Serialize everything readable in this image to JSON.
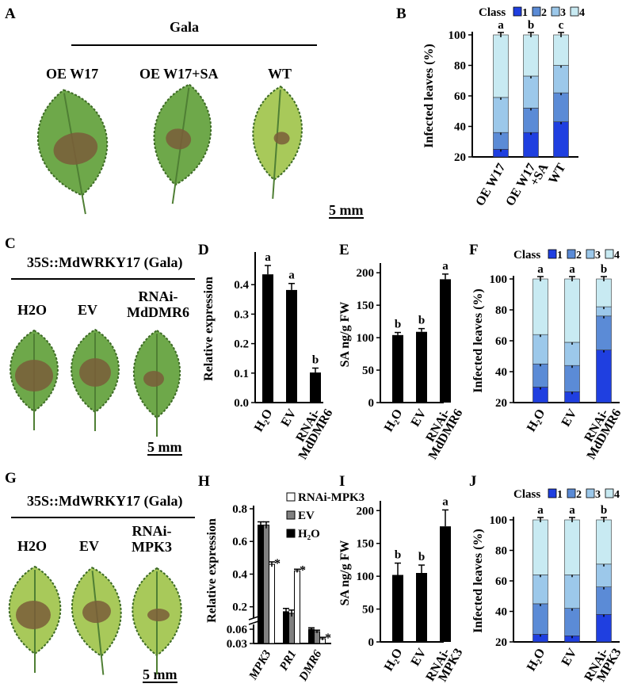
{
  "panel_letters": {
    "A": "A",
    "B": "B",
    "C": "C",
    "D": "D",
    "E": "E",
    "F": "F",
    "G": "G",
    "H": "H",
    "I": "I",
    "J": "J"
  },
  "panel_a": {
    "title": "Gala",
    "labels": [
      "OE W17",
      "OE W17+SA",
      "WT"
    ],
    "scale": "5 mm"
  },
  "panel_c": {
    "title": "35S::MdWRKY17 (Gala)",
    "labels": [
      "H2O",
      "EV",
      "RNAi-\nMdDMR6"
    ],
    "scale": "5 mm"
  },
  "panel_g": {
    "title": "35S::MdWRKY17 (Gala)",
    "labels": [
      "H2O",
      "EV",
      "RNAi-\nMPK3"
    ],
    "scale": "5 mm"
  },
  "colors": {
    "class1": "#1f3fe0",
    "class2": "#5b8bd6",
    "class3": "#9cc8ea",
    "class4": "#c8eaf2",
    "bar_black": "#000000",
    "bar_gray": "#808080",
    "leaf": "#6ea84a",
    "lesion": "#7a5d3a"
  },
  "chart_data": [
    {
      "id": "B",
      "type": "bar",
      "stacked": true,
      "ylabel": "Infected leaves (%)",
      "ylim": [
        20,
        100
      ],
      "yticks": [
        20,
        40,
        60,
        80,
        100
      ],
      "categories": [
        "OE W17",
        "OE W17\n+SA",
        "WT"
      ],
      "legend_title": "Class",
      "legend": [
        "1",
        "2",
        "3",
        "4"
      ],
      "cumulative": [
        [
          25,
          36,
          59,
          100
        ],
        [
          36,
          52,
          73,
          100
        ],
        [
          43,
          62,
          80,
          100
        ]
      ],
      "letters": [
        "a",
        "b",
        "c"
      ]
    },
    {
      "id": "D",
      "type": "bar",
      "ylabel": "Relative expression",
      "ylim": [
        0,
        0.5
      ],
      "yticks": [
        0.0,
        0.1,
        0.2,
        0.3,
        0.4
      ],
      "categories": [
        "H2O",
        "EV",
        "RNAi-\nMdDMR6"
      ],
      "values": [
        0.435,
        0.382,
        0.102
      ],
      "errors": [
        0.03,
        0.022,
        0.015
      ],
      "letters": [
        "a",
        "a",
        "b"
      ]
    },
    {
      "id": "E",
      "type": "bar",
      "ylabel": "SA ng/g FW",
      "ylim": [
        0,
        210
      ],
      "yticks": [
        0,
        50,
        100,
        150,
        200
      ],
      "categories": [
        "H2O",
        "EV",
        "RNAi-\nMdDMR6"
      ],
      "values": [
        104,
        109,
        190
      ],
      "errors": [
        4,
        5,
        8
      ],
      "letters": [
        "b",
        "b",
        "a"
      ]
    },
    {
      "id": "F",
      "type": "bar",
      "stacked": true,
      "ylabel": "Infected leaves (%)",
      "ylim": [
        20,
        100
      ],
      "yticks": [
        20,
        40,
        60,
        80,
        100
      ],
      "categories": [
        "H2O",
        "EV",
        "RNAi-\nMdDMR6"
      ],
      "legend_title": "Class",
      "legend": [
        "1",
        "2",
        "3",
        "4"
      ],
      "cumulative": [
        [
          30,
          45,
          64,
          100
        ],
        [
          27,
          44,
          59,
          100
        ],
        [
          54,
          76,
          82,
          100
        ]
      ],
      "letters": [
        "a",
        "a",
        "b"
      ]
    },
    {
      "id": "H",
      "type": "bar",
      "grouped": true,
      "ylabel": "Relative expression",
      "categories": [
        "MPK3",
        "PR1",
        "DMR6"
      ],
      "series": [
        {
          "name": "H2O",
          "values": [
            0.7,
            0.17,
            0.06
          ]
        },
        {
          "name": "EV",
          "values": [
            0.7,
            0.16,
            0.055
          ]
        },
        {
          "name": "RNAi-MPK3",
          "values": [
            0.46,
            0.42,
            0.04
          ]
        }
      ],
      "errors": [
        [
          0.02,
          0.02,
          0.003
        ],
        [
          0.02,
          0.02,
          0.003
        ],
        [
          0.015,
          0.01,
          0.003
        ]
      ],
      "ytick_labels_upper": [
        "0.2",
        "0.4",
        "0.6",
        "0.8"
      ],
      "ytick_labels_lower": [
        "0.06",
        "0.03"
      ],
      "axis_break": true,
      "marks": [
        "*",
        "*",
        "*"
      ]
    },
    {
      "id": "I",
      "type": "bar",
      "ylabel": "SA ng/g FW",
      "ylim": [
        0,
        210
      ],
      "yticks": [
        0,
        50,
        100,
        150,
        200
      ],
      "categories": [
        "H2O",
        "EV",
        "RNAi-\nMPK3"
      ],
      "values": [
        102,
        105,
        176
      ],
      "errors": [
        18,
        12,
        25
      ],
      "letters": [
        "b",
        "b",
        "a"
      ]
    },
    {
      "id": "J",
      "type": "bar",
      "stacked": true,
      "ylabel": "Infected leaves (%)",
      "ylim": [
        20,
        100
      ],
      "yticks": [
        20,
        40,
        60,
        80,
        100
      ],
      "categories": [
        "H2O",
        "EV",
        "RNAi-\nMPK3"
      ],
      "legend_title": "Class",
      "legend": [
        "1",
        "2",
        "3",
        "4"
      ],
      "cumulative": [
        [
          25,
          45,
          64,
          100
        ],
        [
          24,
          42,
          64,
          100
        ],
        [
          38,
          56,
          71,
          100
        ]
      ],
      "letters": [
        "a",
        "a",
        "b"
      ]
    }
  ]
}
